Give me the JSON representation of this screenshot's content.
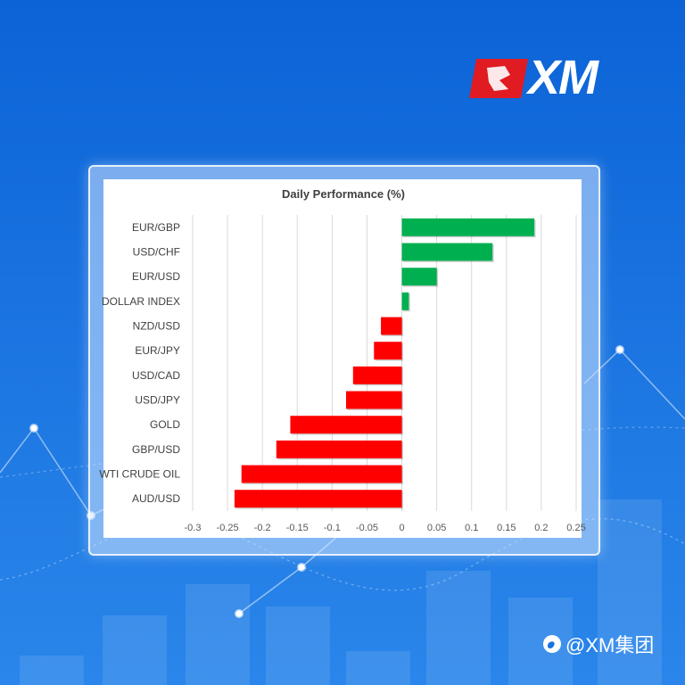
{
  "brand": {
    "logo_text": "XM",
    "footer_text": "@XM集团",
    "accent_red": "#e01b22"
  },
  "chart_data": {
    "type": "bar",
    "orientation": "horizontal",
    "title": "Daily Performance (%)",
    "categories": [
      "EUR/GBP",
      "USD/CHF",
      "EUR/USD",
      "DOLLAR INDEX",
      "NZD/USD",
      "EUR/JPY",
      "USD/CAD",
      "USD/JPY",
      "GOLD",
      "GBP/USD",
      "WTI CRUDE OIL",
      "AUD/USD"
    ],
    "values": [
      0.19,
      0.13,
      0.05,
      0.01,
      -0.03,
      -0.04,
      -0.07,
      -0.08,
      -0.16,
      -0.18,
      -0.23,
      -0.24
    ],
    "xlim": [
      -0.3,
      0.25
    ],
    "xticks": [
      "-0.3",
      "-0.25",
      "-0.2",
      "-0.15",
      "-0.1",
      "-0.05",
      "0",
      "0.05",
      "0.1",
      "0.15",
      "0.2",
      "0.25"
    ],
    "positive_color": "#00b050",
    "negative_color": "#ff0000",
    "grid": true,
    "legend": "none"
  }
}
